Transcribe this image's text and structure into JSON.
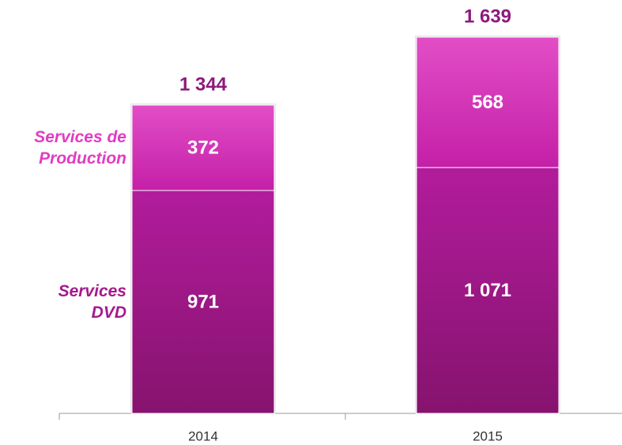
{
  "chart_data": {
    "type": "stacked_bar",
    "categories": [
      "2014",
      "2015"
    ],
    "series": [
      {
        "name": "Services DVD",
        "color": "#a0188a",
        "values": [
          971,
          1071
        ],
        "value_labels": [
          "971",
          "1 071"
        ]
      },
      {
        "name": "Services de Production",
        "color": "#d93cbc",
        "values": [
          372,
          568
        ]
      }
    ],
    "totals": {
      "values": [
        1344,
        1639
      ],
      "value_labels": [
        "1 344",
        "1 639"
      ]
    }
  }
}
